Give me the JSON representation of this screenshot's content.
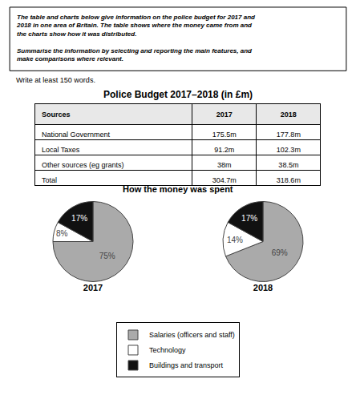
{
  "chart_data": [
    {
      "type": "table",
      "annotations": [
        [
          "The table and charts below give information on the police budget for 2017 and",
          "2018 in one area of Britain. The table shows where the money came from and",
          "the charts show how it was distributed."
        ],
        [
          "Summarise the information by selecting and reporting the main features, and",
          "make comparisons where relevant."
        ]
      ],
      "subtitle": "Write at least 150 words.",
      "title": "Police Budget 2017–2018 (in £m)",
      "xlabel": "Sources",
      "categories": [
        "National Government",
        "Local Taxes",
        "Other sources (eg grants)",
        "Total"
      ],
      "series": [
        {
          "name": "2017",
          "values": [
            175.5,
            91.2,
            38,
            304.7
          ],
          "value_labels": [
            "175.5m",
            "91.2m",
            "38m",
            "304.7m"
          ]
        },
        {
          "name": "2018",
          "values": [
            177.8,
            102.3,
            38.5,
            318.6
          ],
          "value_labels": [
            "177.8m",
            "102.3m",
            "38.5m",
            "318.6m"
          ]
        }
      ]
    },
    {
      "type": "pie",
      "title": "How the money was spent",
      "categories": [
        "Salaries (officers and staff)",
        "Technology",
        "Buildings and transport"
      ],
      "colors": [
        "#aaaaaa",
        "#ffffff",
        "#111111"
      ],
      "series": [
        {
          "name": "2017",
          "values": [
            75,
            8,
            17
          ],
          "value_labels": [
            "75%",
            "8%",
            "17%"
          ]
        },
        {
          "name": "2018",
          "values": [
            69,
            14,
            17
          ],
          "value_labels": [
            "69%",
            "14%",
            "17%"
          ]
        }
      ],
      "data_labels": true,
      "legend": "bottom"
    }
  ]
}
